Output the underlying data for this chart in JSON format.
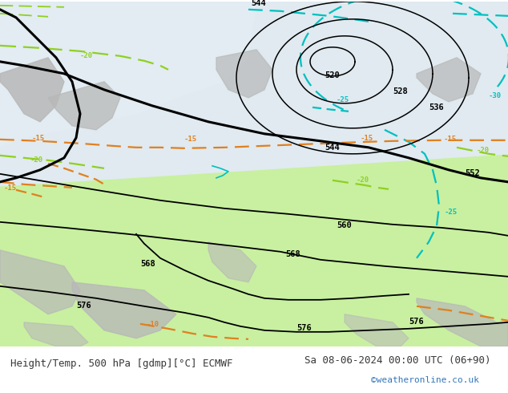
{
  "title_left": "Height/Temp. 500 hPa [gdmp][°C] ECMWF",
  "title_right": "Sa 08-06-2024 00:00 UTC (06+90)",
  "credit": "©weatheronline.co.uk",
  "bg_green": "#c8f0a0",
  "bg_gray": "#d8d8d8",
  "bg_ocean": "#e0eaf0",
  "land_gray": "#b8b8b8",
  "black_color": "#000000",
  "cyan_color": "#00c0c0",
  "green_color": "#90d020",
  "orange_color": "#e08020",
  "footer_color": "#383838",
  "credit_color": "#3377bb",
  "font_size": 9,
  "label_size": 7.5
}
